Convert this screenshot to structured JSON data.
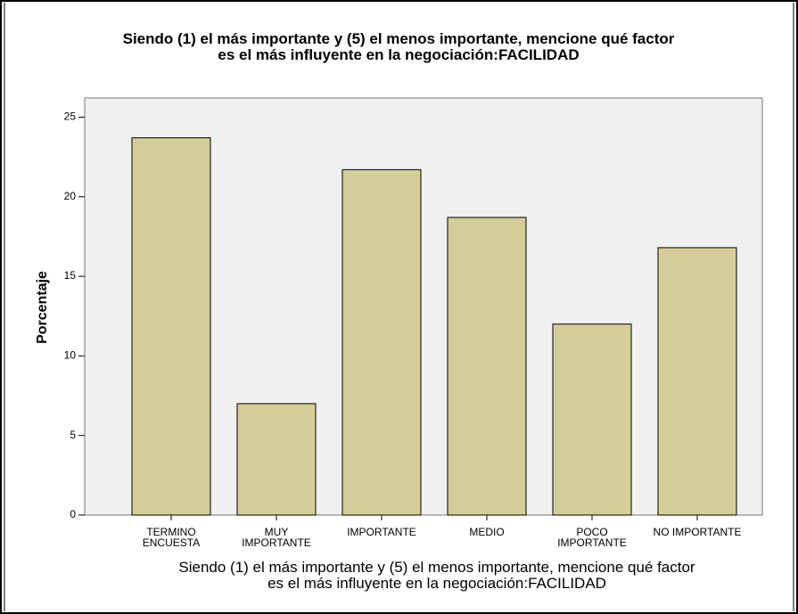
{
  "chart_data": {
    "type": "bar",
    "title": "Siendo (1) el más importante y (5) el menos importante, mencione qué factor\nes el más influyente en la negociación:FACILIDAD",
    "x_label": "Siendo (1) el más importante y (5) el menos importante, mencione qué factor\nes el más influyente en la negociación:FACILIDAD",
    "y_label": "Porcentaje",
    "categories": [
      "TERMINO\nENCUESTA",
      "MUY\nIMPORTANTE",
      "IMPORTANTE",
      "MEDIO",
      "POCO\nIMPORTANTE",
      "NO IMPORTANTE"
    ],
    "values": [
      23.7,
      7.0,
      21.7,
      18.7,
      12.0,
      16.8
    ],
    "color": "#d3ce97",
    "ylim": [
      0,
      26.2
    ],
    "yticks": [
      0,
      5,
      10,
      15,
      20,
      25
    ],
    "grid": false
  }
}
